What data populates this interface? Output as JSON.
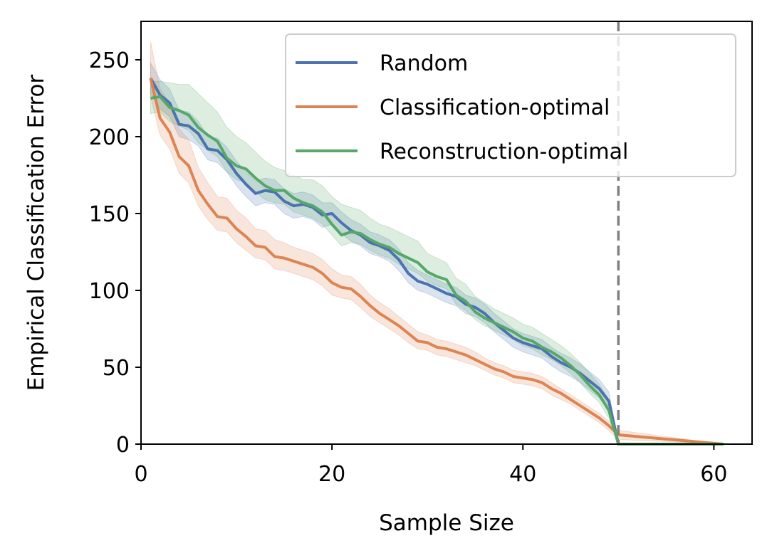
{
  "chart_data": {
    "type": "line",
    "title": "",
    "xlabel": "Sample Size",
    "ylabel": "Empirical Classification Error",
    "xlim": [
      0,
      64
    ],
    "ylim": [
      0,
      275
    ],
    "xticks": [
      0,
      20,
      40,
      60
    ],
    "xtick_labels": [
      "0",
      "20",
      "40",
      "60"
    ],
    "yticks": [
      0,
      50,
      100,
      150,
      200,
      250
    ],
    "ytick_labels": [
      "0",
      "50",
      "100",
      "150",
      "200",
      "250"
    ],
    "grid": false,
    "legend_position": "top-right",
    "reference_line": {
      "x": 50,
      "style": "dashed",
      "color": "#808080"
    },
    "series": [
      {
        "name": "Random",
        "color": "#4c72b0",
        "x": [
          1,
          2,
          3,
          4,
          5,
          6,
          7,
          8,
          9,
          10,
          11,
          12,
          13,
          14,
          15,
          16,
          17,
          18,
          19,
          20,
          21,
          22,
          23,
          24,
          25,
          26,
          27,
          28,
          29,
          30,
          31,
          32,
          33,
          34,
          35,
          36,
          37,
          38,
          39,
          40,
          41,
          42,
          43,
          44,
          45,
          46,
          47,
          48,
          49,
          50,
          61
        ],
        "y": [
          238,
          227,
          222,
          208,
          207,
          202,
          192,
          191,
          185,
          176,
          169,
          163,
          165,
          164,
          158,
          155,
          156,
          154,
          149,
          150,
          144,
          139,
          136,
          131,
          129,
          126,
          120,
          111,
          106,
          104,
          101,
          98,
          96,
          91,
          89,
          85,
          79,
          74,
          69,
          66,
          64,
          62,
          57,
          53,
          50,
          46,
          41,
          36,
          28,
          0,
          0
        ],
        "lower": [
          228,
          218,
          213,
          200,
          198,
          194,
          185,
          183,
          177,
          168,
          161,
          155,
          157,
          156,
          150,
          147,
          148,
          146,
          141,
          143,
          137,
          132,
          129,
          124,
          122,
          119,
          113,
          105,
          100,
          98,
          95,
          92,
          90,
          85,
          83,
          79,
          73,
          68,
          63,
          60,
          58,
          56,
          51,
          47,
          44,
          40,
          35,
          30,
          22,
          0,
          0
        ],
        "upper": [
          248,
          237,
          231,
          217,
          216,
          210,
          200,
          199,
          193,
          184,
          177,
          171,
          173,
          172,
          166,
          163,
          164,
          162,
          157,
          157,
          151,
          146,
          143,
          138,
          136,
          133,
          127,
          118,
          113,
          110,
          107,
          104,
          102,
          97,
          95,
          91,
          85,
          80,
          75,
          72,
          70,
          68,
          63,
          59,
          56,
          52,
          47,
          42,
          34,
          0,
          0
        ]
      },
      {
        "name": "Classification-optimal",
        "color": "#dd8452",
        "x": [
          1,
          2,
          3,
          4,
          5,
          6,
          7,
          8,
          9,
          10,
          11,
          12,
          13,
          14,
          15,
          16,
          17,
          18,
          19,
          20,
          21,
          22,
          23,
          24,
          25,
          26,
          27,
          28,
          29,
          30,
          31,
          32,
          33,
          34,
          35,
          36,
          37,
          38,
          39,
          40,
          41,
          42,
          43,
          44,
          45,
          46,
          47,
          48,
          49,
          50,
          61
        ],
        "y": [
          238,
          212,
          203,
          187,
          181,
          165,
          156,
          148,
          147,
          140,
          135,
          129,
          128,
          122,
          121,
          119,
          117,
          115,
          111,
          105,
          102,
          101,
          96,
          90,
          85,
          81,
          77,
          72,
          67,
          66,
          63,
          62,
          60,
          58,
          55,
          52,
          49,
          47,
          44,
          43,
          42,
          40,
          36,
          33,
          29,
          25,
          21,
          17,
          12,
          6,
          0
        ],
        "lower": [
          226,
          201,
          192,
          176,
          170,
          155,
          146,
          139,
          138,
          131,
          126,
          121,
          120,
          114,
          113,
          111,
          109,
          107,
          103,
          97,
          95,
          94,
          89,
          83,
          79,
          75,
          71,
          66,
          62,
          61,
          58,
          57,
          55,
          53,
          51,
          48,
          45,
          43,
          40,
          39,
          38,
          36,
          32,
          29,
          26,
          22,
          18,
          14,
          9,
          3,
          0
        ],
        "upper": [
          262,
          231,
          222,
          205,
          198,
          180,
          170,
          161,
          160,
          152,
          147,
          140,
          139,
          133,
          131,
          128,
          126,
          124,
          120,
          114,
          110,
          109,
          104,
          97,
          92,
          88,
          83,
          78,
          73,
          71,
          68,
          67,
          65,
          63,
          60,
          56,
          53,
          51,
          48,
          47,
          46,
          44,
          40,
          36,
          32,
          28,
          24,
          20,
          15,
          9,
          0
        ]
      },
      {
        "name": "Reconstruction-optimal",
        "color": "#55a868",
        "x": [
          1,
          2,
          3,
          4,
          5,
          6,
          7,
          8,
          9,
          10,
          11,
          12,
          13,
          14,
          15,
          16,
          17,
          18,
          19,
          20,
          21,
          22,
          23,
          24,
          25,
          26,
          27,
          28,
          29,
          30,
          31,
          32,
          33,
          34,
          35,
          36,
          37,
          38,
          39,
          40,
          41,
          42,
          43,
          44,
          45,
          46,
          47,
          48,
          49,
          50,
          61
        ],
        "y": [
          225,
          226,
          219,
          217,
          214,
          206,
          201,
          197,
          186,
          181,
          179,
          173,
          168,
          165,
          165,
          160,
          157,
          155,
          151,
          143,
          136,
          138,
          137,
          133,
          130,
          128,
          124,
          121,
          118,
          112,
          109,
          107,
          97,
          93,
          86,
          82,
          79,
          76,
          73,
          69,
          67,
          63,
          60,
          56,
          51,
          45,
          38,
          32,
          22,
          0,
          0
        ],
        "lower": [
          215,
          216,
          210,
          207,
          204,
          196,
          191,
          187,
          177,
          172,
          170,
          164,
          159,
          157,
          156,
          151,
          149,
          147,
          143,
          136,
          129,
          131,
          130,
          126,
          123,
          121,
          117,
          114,
          111,
          106,
          103,
          101,
          91,
          87,
          81,
          77,
          74,
          71,
          68,
          64,
          62,
          58,
          55,
          51,
          46,
          40,
          33,
          27,
          17,
          0,
          0
        ],
        "upper": [
          236,
          236,
          235,
          234,
          234,
          228,
          222,
          216,
          206,
          200,
          196,
          190,
          184,
          180,
          178,
          175,
          172,
          172,
          168,
          161,
          156,
          154,
          152,
          147,
          143,
          141,
          138,
          135,
          132,
          124,
          121,
          118,
          108,
          104,
          96,
          92,
          88,
          85,
          82,
          78,
          76,
          72,
          68,
          64,
          59,
          53,
          46,
          39,
          29,
          0,
          0
        ]
      }
    ]
  }
}
